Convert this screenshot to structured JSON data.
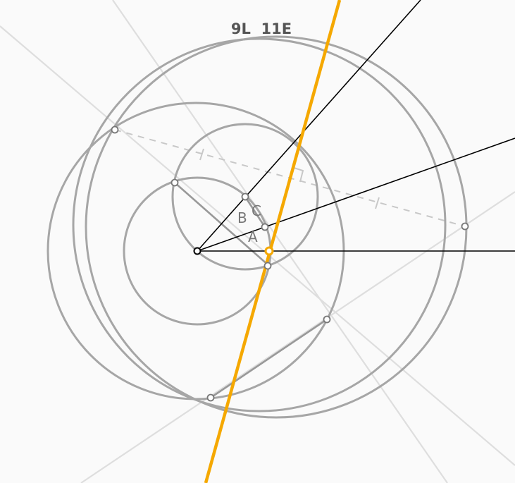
{
  "title": "9L  11E",
  "labels": {
    "a": "A",
    "b": "B",
    "c": "C"
  },
  "colors": {
    "background": "#fafafa",
    "circle": "#a6a6a6",
    "faint_line": "#dedede",
    "dashed_line": "#c8c8c8",
    "ray": "#000000",
    "highlight_line": "#f5a800",
    "point_fill": "#ffffff",
    "point_stroke": "#777777"
  }
}
